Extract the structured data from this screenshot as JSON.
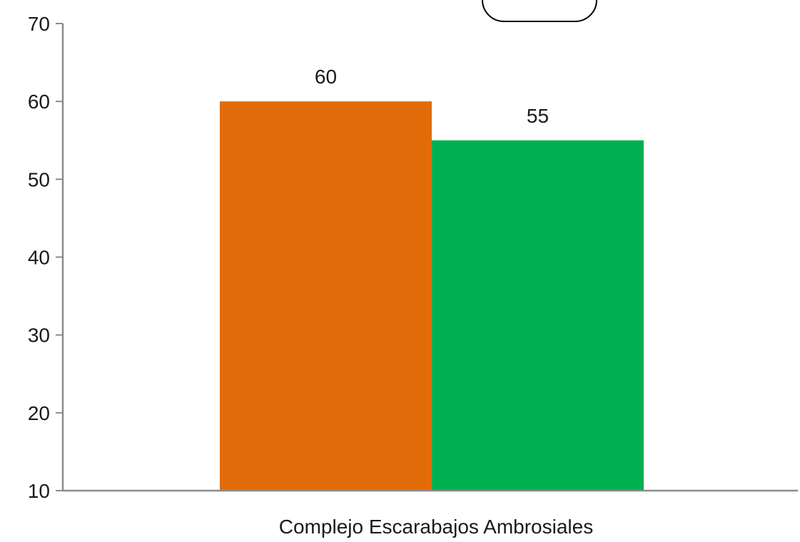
{
  "chart_data": {
    "type": "bar",
    "categories": [
      "Complejo Escarabajos Ambrosiales"
    ],
    "series": [
      {
        "values": [
          60
        ],
        "color": "#e36c0a"
      },
      {
        "values": [
          55
        ],
        "color": "#00b050"
      }
    ],
    "data_labels": [
      "60",
      "55"
    ],
    "title": "",
    "xlabel": "",
    "ylabel": "",
    "ylim": [
      10,
      70
    ],
    "yticks": [
      10,
      20,
      30,
      40,
      50,
      60,
      70
    ],
    "grid": false,
    "legend": "top-center"
  }
}
